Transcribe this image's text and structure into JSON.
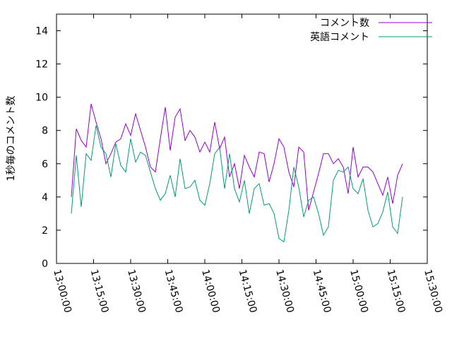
{
  "chart_data": {
    "type": "line",
    "ylabel": "1秒毎のコメント数",
    "x": [
      "13:06:00",
      "13:08:00",
      "13:10:00",
      "13:12:00",
      "13:14:00",
      "13:16:00",
      "13:18:00",
      "13:20:00",
      "13:22:00",
      "13:24:00",
      "13:26:00",
      "13:28:00",
      "13:30:00",
      "13:32:00",
      "13:34:00",
      "13:36:00",
      "13:38:00",
      "13:40:00",
      "13:42:00",
      "13:44:00",
      "13:46:00",
      "13:48:00",
      "13:50:00",
      "13:52:00",
      "13:54:00",
      "13:56:00",
      "13:58:00",
      "14:00:00",
      "14:02:00",
      "14:04:00",
      "14:06:00",
      "14:08:00",
      "14:10:00",
      "14:12:00",
      "14:14:00",
      "14:16:00",
      "14:18:00",
      "14:20:00",
      "14:22:00",
      "14:24:00",
      "14:26:00",
      "14:28:00",
      "14:30:00",
      "14:32:00",
      "14:34:00",
      "14:36:00",
      "14:38:00",
      "14:40:00",
      "14:42:00",
      "14:44:00",
      "14:46:00",
      "14:48:00",
      "14:50:00",
      "14:52:00",
      "14:54:00",
      "14:56:00",
      "14:58:00",
      "15:00:00",
      "15:02:00",
      "15:04:00",
      "15:06:00",
      "15:08:00",
      "15:10:00",
      "15:12:00",
      "15:14:00",
      "15:16:00",
      "15:18:00",
      "15:20:00"
    ],
    "series": [
      {
        "name": "コメント数",
        "color": "#9400d3",
        "values": [
          4.0,
          8.1,
          7.4,
          7.0,
          9.6,
          8.5,
          7.5,
          6.0,
          6.6,
          7.3,
          7.5,
          8.4,
          7.7,
          9.0,
          8.0,
          7.0,
          5.8,
          5.5,
          7.5,
          9.4,
          6.8,
          8.8,
          9.3,
          7.4,
          8.0,
          7.6,
          6.7,
          7.3,
          6.7,
          8.5,
          6.9,
          7.6,
          5.2,
          6.0,
          4.5,
          6.5,
          5.8,
          5.2,
          6.7,
          6.6,
          4.9,
          6.0,
          7.5,
          7.0,
          5.5,
          4.6,
          7.0,
          6.7,
          3.2,
          4.3,
          5.4,
          6.6,
          6.6,
          6.0,
          6.3,
          5.8,
          4.2,
          7.0,
          5.2,
          5.8,
          5.8,
          5.5,
          4.8,
          4.1,
          5.2,
          3.6,
          5.3,
          6.0
        ]
      },
      {
        "name": "英語コメント",
        "color": "#009e73",
        "values": [
          3.0,
          6.5,
          3.4,
          6.6,
          6.2,
          8.3,
          7.0,
          6.6,
          5.2,
          7.2,
          5.9,
          5.5,
          7.5,
          6.1,
          6.7,
          6.5,
          5.5,
          4.5,
          3.8,
          4.2,
          5.3,
          4.0,
          6.3,
          4.5,
          4.6,
          5.0,
          3.8,
          3.5,
          4.8,
          6.6,
          7.0,
          4.5,
          6.6,
          4.5,
          3.7,
          5.0,
          3.0,
          4.5,
          4.8,
          3.5,
          3.6,
          3.0,
          1.5,
          1.3,
          3.2,
          5.8,
          4.6,
          2.8,
          3.8,
          4.0,
          3.0,
          1.7,
          2.2,
          5.0,
          5.6,
          5.5,
          5.8,
          4.5,
          4.2,
          5.1,
          3.2,
          2.2,
          2.4,
          3.1,
          4.3,
          2.2,
          1.8,
          4.0
        ]
      }
    ],
    "xlim": [
      "13:00:00",
      "15:30:00"
    ],
    "xticks": [
      "13:00:00",
      "13:15:00",
      "13:30:00",
      "13:45:00",
      "14:00:00",
      "14:15:00",
      "14:30:00",
      "14:45:00",
      "15:00:00",
      "15:15:00",
      "15:30:00"
    ],
    "ylim": [
      0,
      15
    ],
    "yticks": [
      0,
      2,
      4,
      6,
      8,
      10,
      12,
      14
    ],
    "legend": "upper right"
  }
}
